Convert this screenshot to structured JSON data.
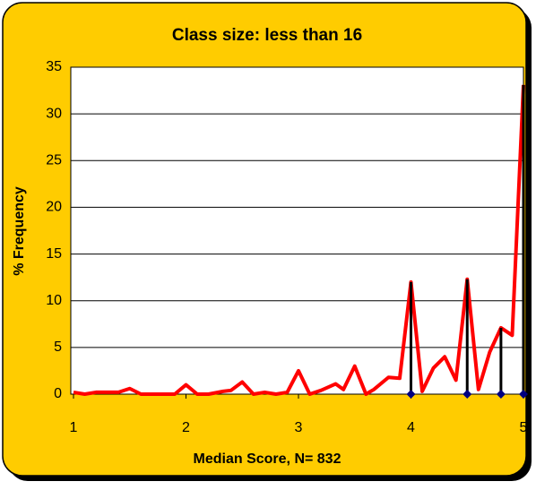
{
  "chart_data": {
    "type": "line",
    "title": "Class size: less than 16",
    "x_label": "Median Score, N= 832",
    "y_label": "% Frequency",
    "xlim": [
      1,
      5
    ],
    "xticks": [
      1,
      2,
      3,
      4,
      5
    ],
    "ylim": [
      0,
      35
    ],
    "yticks": [
      0,
      5,
      10,
      15,
      20,
      25,
      30,
      35
    ],
    "grid": true,
    "series": [
      {
        "color": "#ff0000",
        "style": "line",
        "x": [
          1,
          1.1,
          1.2,
          1.33,
          1.4,
          1.5,
          1.6,
          1.7,
          1.8,
          1.9,
          2,
          2.1,
          2.2,
          2.33,
          2.4,
          2.5,
          2.6,
          2.7,
          2.8,
          2.9,
          3,
          3.1,
          3.2,
          3.33,
          3.4,
          3.5,
          3.6,
          3.67,
          3.8,
          3.9,
          4,
          4.1,
          4.2,
          4.3,
          4.4,
          4.5,
          4.6,
          4.7,
          4.8,
          4.9,
          5
        ],
        "values": [
          0.2,
          0,
          0.2,
          0.2,
          0.2,
          0.6,
          0,
          0,
          0,
          0,
          1.0,
          0,
          0,
          0.3,
          0.4,
          1.3,
          0,
          0.2,
          0,
          0.2,
          2.5,
          0,
          0.4,
          1.1,
          0.5,
          3.0,
          0,
          0.5,
          1.8,
          1.7,
          12.0,
          0.3,
          2.8,
          4.0,
          1.5,
          12.3,
          0.5,
          4.5,
          7.1,
          6.3,
          33.1
        ]
      },
      {
        "color": "#000000",
        "style": "stem",
        "x": [
          4,
          4.5,
          4.8,
          5
        ],
        "values": [
          12.0,
          12.3,
          7.1,
          33.1
        ]
      },
      {
        "color": "#000080",
        "style": "diamond",
        "x": [
          4,
          4.5,
          4.8,
          5
        ],
        "values": [
          0,
          0,
          0,
          0
        ]
      }
    ]
  }
}
